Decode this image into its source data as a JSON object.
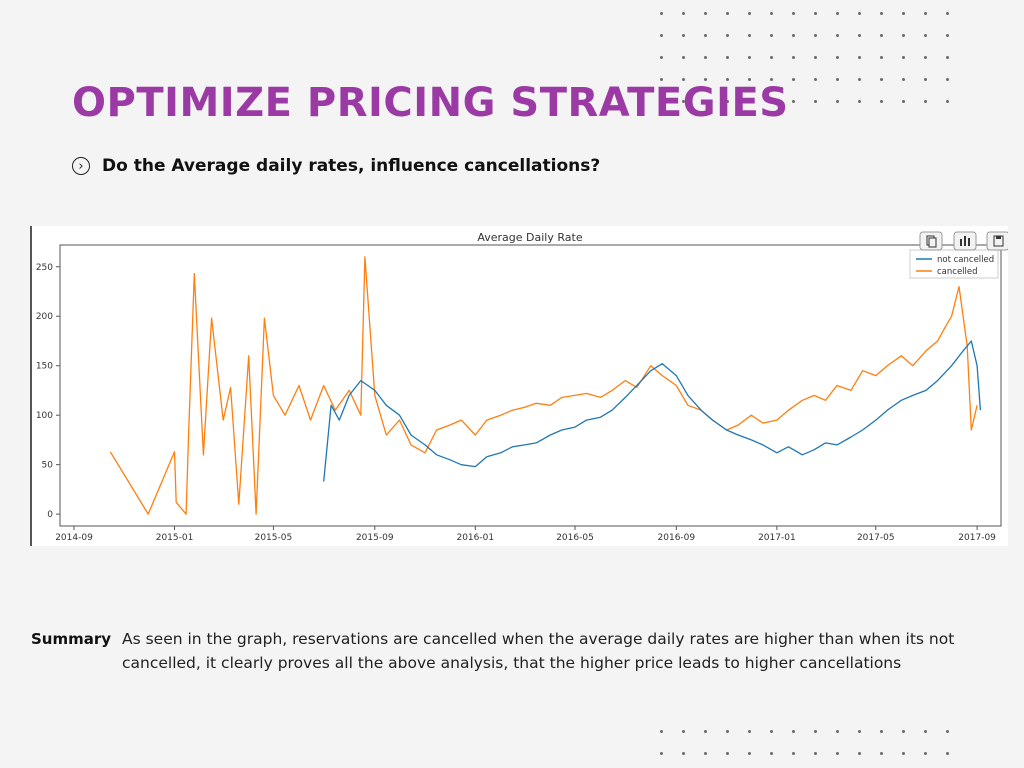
{
  "slide": {
    "title": "OPTIMIZE PRICING STRATEGIES",
    "question": "Do the Average daily rates, influence cancellations?",
    "question_icon": "chevron-right-circle-icon",
    "summary_label": "Summary",
    "summary_text": "As seen in the graph, reservations are cancelled when the average daily rates are higher than when its not cancelled, it clearly proves all the above analysis, that the higher price leads to higher cancellations",
    "title_color": "#9b3aa4",
    "background_color": "#f4f4f4"
  },
  "toolbar": {
    "icons": [
      "copy-icon",
      "chart-icon",
      "save-icon"
    ]
  },
  "chart_data": {
    "type": "line",
    "title": "Average Daily Rate",
    "xlabel": "",
    "ylabel": "",
    "x_ticks": [
      "2014-09",
      "2015-01",
      "2015-05",
      "2015-09",
      "2016-01",
      "2016-05",
      "2016-09",
      "2017-01",
      "2017-05",
      "2017-09"
    ],
    "y_ticks": [
      0,
      50,
      100,
      150,
      200,
      250
    ],
    "ylim": [
      -12,
      272
    ],
    "xlim": [
      "2014-08-15",
      "2017-09-30"
    ],
    "legend_position": "top-right",
    "grid": false,
    "series": [
      {
        "name": "not cancelled",
        "color": "#1f77b4",
        "x": [
          "2015-07-01",
          "2015-07-10",
          "2015-07-20",
          "2015-08-01",
          "2015-08-15",
          "2015-09-01",
          "2015-09-15",
          "2015-10-01",
          "2015-10-15",
          "2015-11-01",
          "2015-11-15",
          "2015-12-01",
          "2015-12-15",
          "2016-01-01",
          "2016-01-15",
          "2016-02-01",
          "2016-02-15",
          "2016-03-01",
          "2016-03-15",
          "2016-04-01",
          "2016-04-15",
          "2016-05-01",
          "2016-05-15",
          "2016-06-01",
          "2016-06-15",
          "2016-07-01",
          "2016-07-15",
          "2016-08-01",
          "2016-08-15",
          "2016-09-01",
          "2016-09-15",
          "2016-10-01",
          "2016-10-15",
          "2016-11-01",
          "2016-11-15",
          "2016-12-01",
          "2016-12-15",
          "2017-01-01",
          "2017-01-15",
          "2017-02-01",
          "2017-02-15",
          "2017-03-01",
          "2017-03-15",
          "2017-04-01",
          "2017-04-15",
          "2017-05-01",
          "2017-05-15",
          "2017-06-01",
          "2017-06-15",
          "2017-07-01",
          "2017-07-15",
          "2017-08-01",
          "2017-08-15",
          "2017-08-25",
          "2017-09-01",
          "2017-09-05"
        ],
        "values": [
          33,
          110,
          95,
          120,
          135,
          125,
          110,
          100,
          80,
          70,
          60,
          55,
          50,
          48,
          58,
          62,
          68,
          70,
          72,
          80,
          85,
          88,
          95,
          98,
          105,
          118,
          130,
          145,
          152,
          140,
          120,
          105,
          95,
          85,
          80,
          75,
          70,
          62,
          68,
          60,
          65,
          72,
          70,
          78,
          85,
          95,
          105,
          115,
          120,
          125,
          135,
          150,
          165,
          175,
          150,
          105
        ]
      },
      {
        "name": "cancelled",
        "color": "#ff7f0e",
        "x": [
          "2014-10-15",
          "2014-11-30",
          "2015-01-01",
          "2015-01-03",
          "2015-01-15",
          "2015-01-18",
          "2015-01-25",
          "2015-02-05",
          "2015-02-15",
          "2015-03-01",
          "2015-03-10",
          "2015-03-20",
          "2015-04-01",
          "2015-04-10",
          "2015-04-20",
          "2015-05-01",
          "2015-05-15",
          "2015-06-01",
          "2015-06-15",
          "2015-07-01",
          "2015-07-15",
          "2015-08-01",
          "2015-08-15",
          "2015-08-20",
          "2015-09-01",
          "2015-09-15",
          "2015-10-01",
          "2015-10-15",
          "2015-11-01",
          "2015-11-15",
          "2015-12-01",
          "2015-12-15",
          "2016-01-01",
          "2016-01-15",
          "2016-02-01",
          "2016-02-15",
          "2016-03-01",
          "2016-03-15",
          "2016-04-01",
          "2016-04-15",
          "2016-05-01",
          "2016-05-15",
          "2016-06-01",
          "2016-06-15",
          "2016-07-01",
          "2016-07-15",
          "2016-08-01",
          "2016-08-15",
          "2016-09-01",
          "2016-09-15",
          "2016-10-01",
          "2016-10-15",
          "2016-11-01",
          "2016-11-15",
          "2016-12-01",
          "2016-12-15",
          "2017-01-01",
          "2017-01-15",
          "2017-02-01",
          "2017-02-15",
          "2017-03-01",
          "2017-03-15",
          "2017-04-01",
          "2017-04-15",
          "2017-05-01",
          "2017-05-15",
          "2017-06-01",
          "2017-06-15",
          "2017-07-01",
          "2017-07-15",
          "2017-07-25",
          "2017-08-01",
          "2017-08-10",
          "2017-08-20",
          "2017-08-25",
          "2017-09-01"
        ],
        "values": [
          63,
          0,
          63,
          12,
          0,
          78,
          243,
          60,
          198,
          95,
          128,
          10,
          160,
          0,
          198,
          120,
          100,
          130,
          95,
          130,
          105,
          125,
          100,
          260,
          120,
          80,
          95,
          70,
          62,
          85,
          90,
          95,
          80,
          95,
          100,
          105,
          108,
          112,
          110,
          118,
          120,
          122,
          118,
          125,
          135,
          128,
          150,
          140,
          130,
          110,
          105,
          95,
          85,
          90,
          100,
          92,
          95,
          105,
          115,
          120,
          115,
          130,
          125,
          145,
          140,
          150,
          160,
          150,
          165,
          175,
          190,
          200,
          230,
          170,
          85,
          110
        ]
      }
    ]
  }
}
